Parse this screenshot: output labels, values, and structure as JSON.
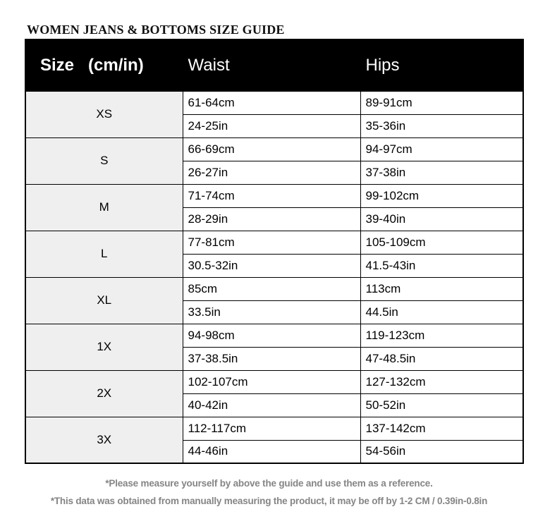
{
  "page_title": "WOMEN JEANS & BOTTOMS SIZE GUIDE",
  "table": {
    "header": {
      "size_label": "Size",
      "size_unit": "(cm/in)",
      "waist": "Waist",
      "hips": "Hips"
    },
    "rows": [
      {
        "size": "XS",
        "waist_cm": "61-64cm",
        "waist_in": "24-25in",
        "hips_cm": "89-91cm",
        "hips_in": "35-36in"
      },
      {
        "size": "S",
        "waist_cm": "66-69cm",
        "waist_in": "26-27in",
        "hips_cm": "94-97cm",
        "hips_in": "37-38in"
      },
      {
        "size": "M",
        "waist_cm": "71-74cm",
        "waist_in": "28-29in",
        "hips_cm": "99-102cm",
        "hips_in": "39-40in"
      },
      {
        "size": "L",
        "waist_cm": "77-81cm",
        "waist_in": "30.5-32in",
        "hips_cm": "105-109cm",
        "hips_in": "41.5-43in"
      },
      {
        "size": "XL",
        "waist_cm": "85cm",
        "waist_in": "33.5in",
        "hips_cm": "113cm",
        "hips_in": "44.5in"
      },
      {
        "size": "1X",
        "waist_cm": "94-98cm",
        "waist_in": "37-38.5in",
        "hips_cm": "119-123cm",
        "hips_in": "47-48.5in"
      },
      {
        "size": "2X",
        "waist_cm": "102-107cm",
        "waist_in": "40-42in",
        "hips_cm": "127-132cm",
        "hips_in": "50-52in"
      },
      {
        "size": "3X",
        "waist_cm": "112-117cm",
        "waist_in": "44-46in",
        "hips_cm": "137-142cm",
        "hips_in": "54-56in"
      }
    ]
  },
  "notes": [
    "*Please measure yourself by above the guide and use them as a reference.",
    "*This data was obtained from manually measuring the product, it may be off by 1-2 CM / 0.39in-0.8in"
  ],
  "colors": {
    "header_bg": "#000000",
    "header_text": "#ffffff",
    "size_col_bg": "#efefef",
    "border": "#000000",
    "note_text": "#858585"
  }
}
